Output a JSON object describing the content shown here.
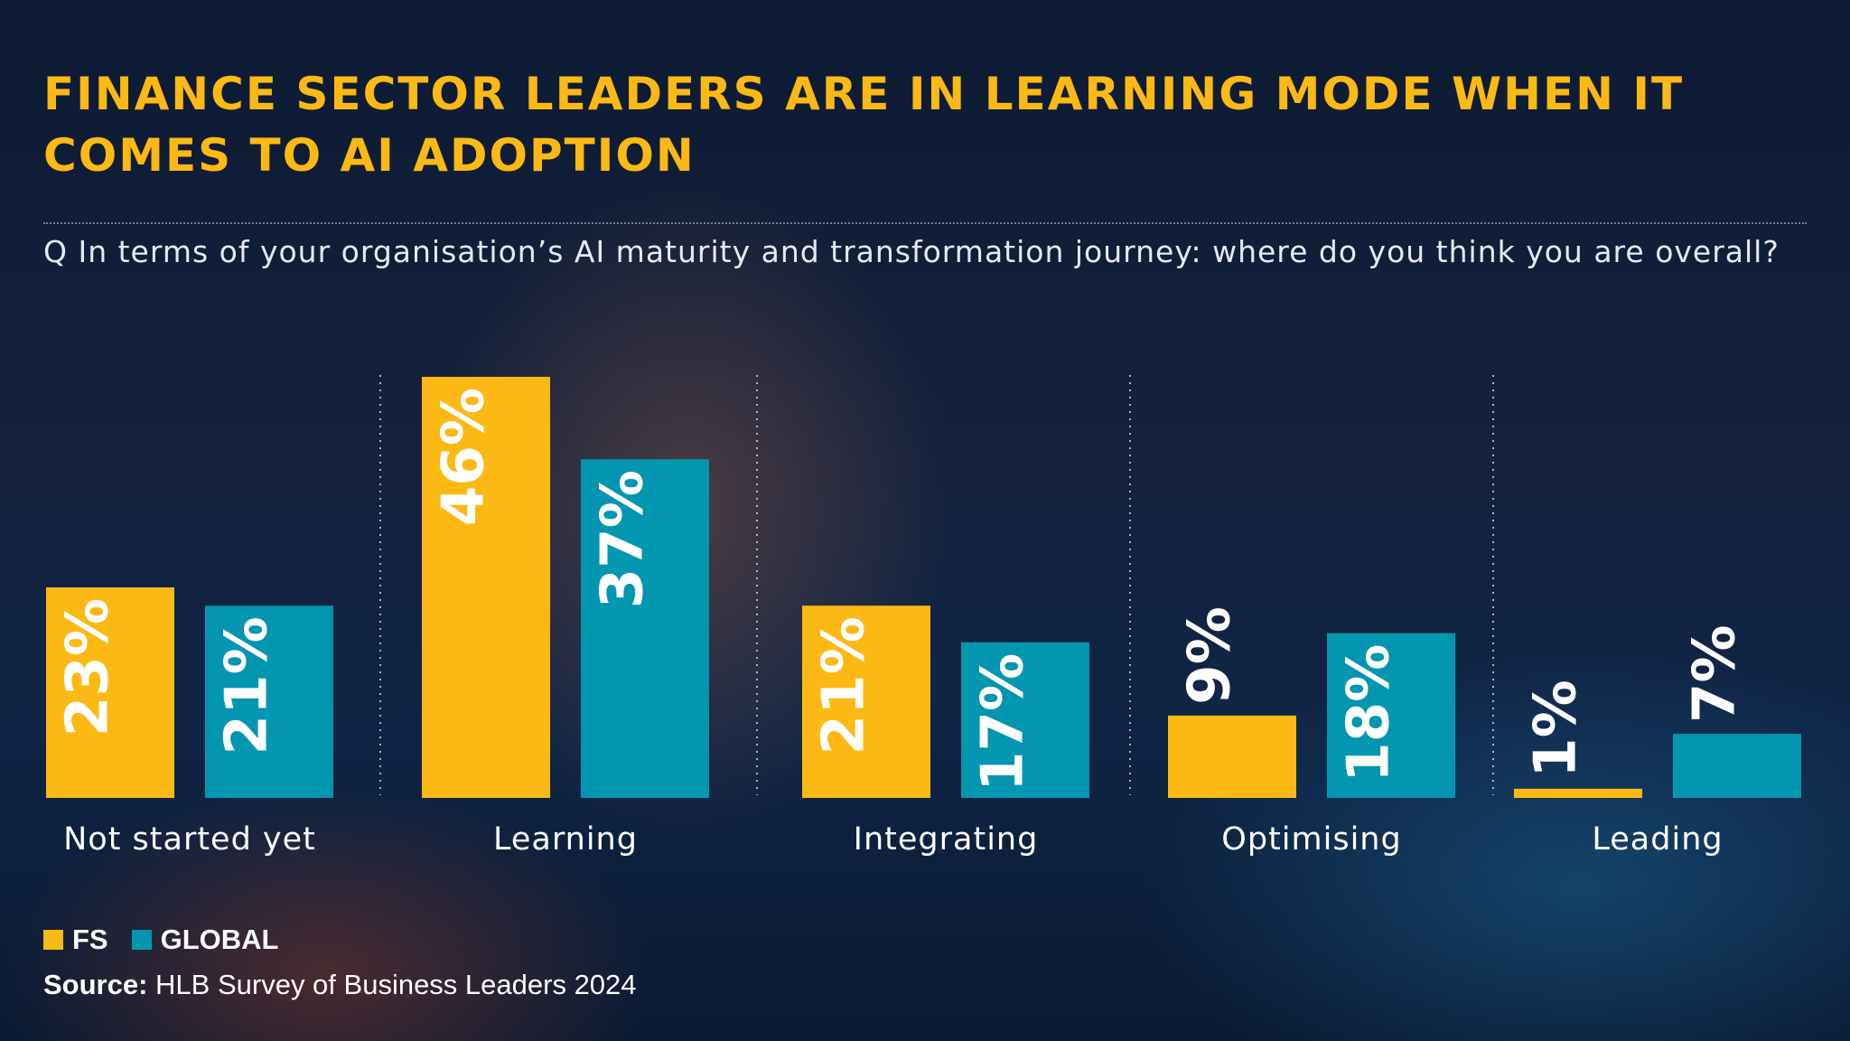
{
  "title": "FINANCE SECTOR LEADERS ARE IN LEARNING MODE WHEN IT COMES TO AI ADOPTION",
  "question": "Q In terms of your organisation’s AI maturity and transformation journey: where do you think you are overall?",
  "legend": {
    "fs_label": "FS",
    "global_label": "GLOBAL"
  },
  "source": {
    "label": "Source:",
    "text": "HLB Survey of Business Leaders 2024"
  },
  "colors": {
    "fs": "#FDB913",
    "global": "#0396B0",
    "title": "#FDB913"
  },
  "chart_data": {
    "type": "bar",
    "categories": [
      "Not started yet",
      "Learning",
      "Integrating",
      "Optimising",
      "Leading"
    ],
    "series": [
      {
        "name": "FS",
        "values": [
          23,
          46,
          21,
          9,
          1
        ],
        "labels": [
          "23%",
          "46%",
          "21%",
          "9%",
          "1%"
        ]
      },
      {
        "name": "GLOBAL",
        "values": [
          21,
          37,
          17,
          18,
          7
        ],
        "labels": [
          "21%",
          "37%",
          "17%",
          "18%",
          "7%"
        ]
      }
    ],
    "unit": "%",
    "ylim": [
      0,
      46
    ],
    "grid": false,
    "legend": "bottom-left"
  }
}
